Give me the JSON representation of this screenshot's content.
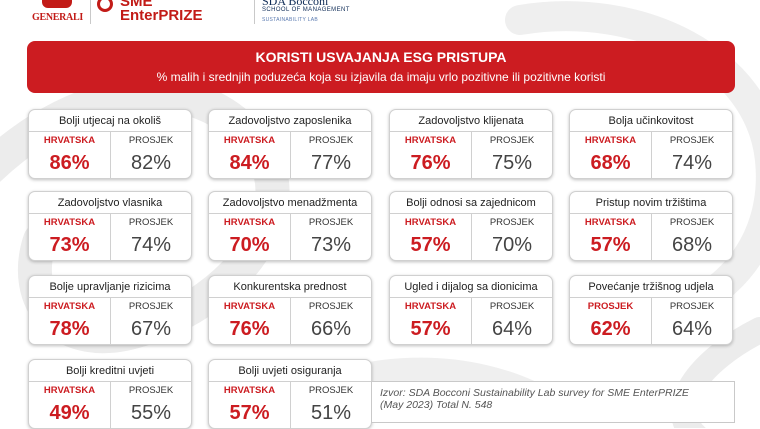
{
  "logos": {
    "generali": "GENERALI",
    "sme_line1": "SME",
    "sme_line2": "EnterPRIZE",
    "sda_line1": "SDA Bocconi",
    "sda_line2": "SCHOOL OF MANAGEMENT",
    "sda_line3": "SUSTAINABILITY LAB"
  },
  "banner": {
    "title": "KORISTI USVAJANJA ESG PRISTUPA",
    "subtitle": "% malih i srednjih poduzeća koja su izjavila da imaju vrlo pozitivne ili pozitivne koristi"
  },
  "colors": {
    "accent": "#cc1c21",
    "neutral": "#444444"
  },
  "cards": [
    {
      "title": "Bolji utjecaj na okoliš",
      "left_label": "HRVATSKA",
      "left_value": "86%",
      "right_label": "PROSJEK",
      "right_value": "82%"
    },
    {
      "title": "Zadovoljstvo zaposlenika",
      "left_label": "HRVATSKA",
      "left_value": "84%",
      "right_label": "PROSJEK",
      "right_value": "77%"
    },
    {
      "title": "Zadovoljstvo klijenata",
      "left_label": "HRVATSKA",
      "left_value": "76%",
      "right_label": "PROSJEK",
      "right_value": "75%"
    },
    {
      "title": "Bolja učinkovitost",
      "left_label": "HRVATSKA",
      "left_value": "68%",
      "right_label": "PROSJEK",
      "right_value": "74%"
    },
    {
      "title": "Zadovoljstvo vlasnika",
      "left_label": "HRVATSKA",
      "left_value": "73%",
      "right_label": "PROSJEK",
      "right_value": "74%"
    },
    {
      "title": "Zadovoljstvo menadžmenta",
      "left_label": "HRVATSKA",
      "left_value": "70%",
      "right_label": "PROSJEK",
      "right_value": "73%"
    },
    {
      "title": "Bolji odnosi sa zajednicom",
      "left_label": "HRVATSKA",
      "left_value": "57%",
      "right_label": "PROSJEK",
      "right_value": "70%"
    },
    {
      "title": "Pristup novim tržištima",
      "left_label": "HRVATSKA",
      "left_value": "57%",
      "right_label": "PROSJEK",
      "right_value": "68%"
    },
    {
      "title": "Bolje upravljanje rizicima",
      "left_label": "HRVATSKA",
      "left_value": "78%",
      "right_label": "PROSJEK",
      "right_value": "67%"
    },
    {
      "title": "Konkurentska prednost",
      "left_label": "HRVATSKA",
      "left_value": "76%",
      "right_label": "PROSJEK",
      "right_value": "66%"
    },
    {
      "title": "Ugled i dijalog sa dionicima",
      "left_label": "HRVATSKA",
      "left_value": "57%",
      "right_label": "PROSJEK",
      "right_value": "64%"
    },
    {
      "title": "Povećanje tržišnog udjela",
      "left_label": "PROSJEK",
      "left_value": "62%",
      "right_label": "PROSJEK",
      "right_value": "64%"
    },
    {
      "title": "Bolji kreditni uvjeti",
      "left_label": "HRVATSKA",
      "left_value": "49%",
      "right_label": "PROSJEK",
      "right_value": "55%"
    },
    {
      "title": "Bolji uvjeti osiguranja",
      "left_label": "HRVATSKA",
      "left_value": "57%",
      "right_label": "PROSJEK",
      "right_value": "51%"
    }
  ],
  "source": {
    "line1": "Izvor: SDA Bocconi Sustainability Lab survey for SME EnterPRIZE",
    "line2": "(May 2023) Total N. 548"
  }
}
